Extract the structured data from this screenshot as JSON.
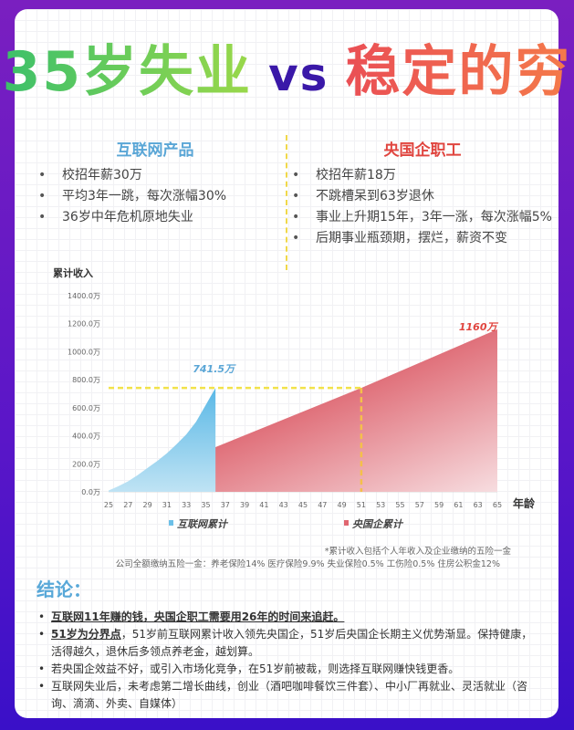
{
  "title": {
    "left": "35岁失业",
    "vs": "vs",
    "right": "稳定的穷"
  },
  "left_col": {
    "heading": "互联网产品",
    "items": [
      "校招年薪30万",
      "平均3年一跳，每次涨幅30%",
      "36岁中年危机原地失业"
    ]
  },
  "right_col": {
    "heading": "央国企职工",
    "items": [
      "校招年薪18万",
      "不跳槽呆到63岁退休",
      "事业上升期15年，3年一涨，每次涨幅5%",
      "后期事业瓶颈期，摆烂，薪资不变"
    ]
  },
  "colors": {
    "internet": "#6cc0e8",
    "soe": "#e06670",
    "guide": "#f2e24a",
    "heading_left": "#5aa6d6",
    "heading_right": "#e0453f"
  },
  "chart_data": {
    "type": "area",
    "ylabel": "累计收入",
    "xlabel": "年龄",
    "ylim": [
      0,
      1400
    ],
    "xlim": [
      25,
      65
    ],
    "yticks": [
      "0.0万",
      "200.0万",
      "400.0万",
      "600.0万",
      "800.0万",
      "1000.0万",
      "1200.0万",
      "1400.0万"
    ],
    "xticks": [
      "25",
      "27",
      "29",
      "31",
      "33",
      "35",
      "37",
      "39",
      "41",
      "43",
      "45",
      "47",
      "49",
      "51",
      "53",
      "55",
      "57",
      "59",
      "61",
      "63",
      "65"
    ],
    "series": [
      {
        "name": "互联网累计",
        "x": [
          25,
          26,
          27,
          28,
          29,
          30,
          31,
          32,
          33,
          34,
          35,
          36
        ],
        "values": [
          10,
          40,
          75,
          120,
          170,
          220,
          275,
          340,
          410,
          500,
          620,
          741.5
        ],
        "label": "741.5万"
      },
      {
        "name": "央国企累计",
        "x": [
          25,
          36,
          51,
          65
        ],
        "values": [
          0,
          319,
          741.5,
          1160
        ],
        "label": "1160万"
      }
    ],
    "annotations": {
      "threshold_value": 741.5,
      "threshold_age": 51
    }
  },
  "footnotes": [
    "*累计收入包括个人年收入及企业缴纳的五险一金",
    "公司全额缴纳五险一金：养老保险14% 医疗保险9.9% 失业保险0.5% 工伤险0.5% 住房公积金12%"
  ],
  "conclusion": {
    "title": "结论：",
    "items": [
      {
        "bold": "互联网11年赚的钱，央国企职工需要用26年的时间来追赶。",
        "text": ""
      },
      {
        "bold": "51岁为分界点",
        "text": "，51岁前互联网累计收入领先央国企，51岁后央国企长期主义优势渐显。保持健康，活得越久，退休后多领点养老金，越划算。"
      },
      {
        "bold": "",
        "text": "若央国企效益不好，或引入市场化竞争，在51岁前被裁，则选择互联网赚快钱更香。"
      },
      {
        "bold": "",
        "text": "互联网失业后，未考虑第二增长曲线，创业（酒吧咖啡餐饮三件套）、中小厂再就业、灵活就业（咨询、滴滴、外卖、自媒体）"
      }
    ]
  }
}
